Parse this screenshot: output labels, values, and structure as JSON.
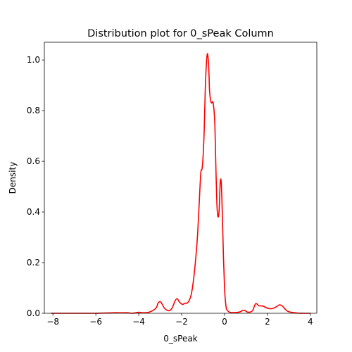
{
  "chart_data": {
    "type": "line",
    "title": "Distribution plot for 0_sPeak Column",
    "xlabel": "0_sPeak",
    "ylabel": "Density",
    "xlim": [
      -8.4,
      4.3
    ],
    "ylim": [
      0,
      1.07
    ],
    "x_ticks": [
      -8,
      -6,
      -4,
      -2,
      0,
      2,
      4
    ],
    "x_tick_labels": [
      "−8",
      "−6",
      "−4",
      "−2",
      "0",
      "2",
      "4"
    ],
    "y_ticks": [
      0.0,
      0.2,
      0.4,
      0.6,
      0.8,
      1.0
    ],
    "y_tick_labels": [
      "0.0",
      "0.2",
      "0.4",
      "0.6",
      "0.8",
      "1.0"
    ],
    "grid": false,
    "series": [
      {
        "color": "#ff0000",
        "x": [
          -8.1,
          -7.0,
          -6.0,
          -5.2,
          -4.8,
          -4.5,
          -4.3,
          -4.0,
          -3.8,
          -3.5,
          -3.2,
          -3.1,
          -3.0,
          -2.9,
          -2.8,
          -2.6,
          -2.45,
          -2.3,
          -2.2,
          -2.15,
          -2.05,
          -1.95,
          -1.85,
          -1.75,
          -1.65,
          -1.55,
          -1.45,
          -1.35,
          -1.25,
          -1.15,
          -1.1,
          -1.05,
          -1.0,
          -0.95,
          -0.9,
          -0.85,
          -0.8,
          -0.75,
          -0.72,
          -0.7,
          -0.65,
          -0.6,
          -0.55,
          -0.5,
          -0.45,
          -0.4,
          -0.35,
          -0.3,
          -0.25,
          -0.2,
          -0.15,
          -0.1,
          -0.05,
          0.0,
          0.05,
          0.1,
          0.2,
          0.3,
          0.5,
          0.7,
          0.9,
          1.1,
          1.3,
          1.45,
          1.6,
          1.8,
          2.0,
          2.2,
          2.4,
          2.55,
          2.7,
          2.9,
          3.1,
          3.4,
          3.7,
          4.0
        ],
        "y": [
          0.0,
          0.0,
          0.0,
          0.002,
          0.002,
          0.002,
          0.0,
          0.004,
          0.002,
          0.005,
          0.02,
          0.04,
          0.046,
          0.035,
          0.02,
          0.01,
          0.02,
          0.05,
          0.058,
          0.05,
          0.04,
          0.035,
          0.04,
          0.04,
          0.05,
          0.075,
          0.13,
          0.21,
          0.32,
          0.49,
          0.56,
          0.57,
          0.62,
          0.72,
          0.88,
          0.98,
          1.025,
          0.99,
          0.93,
          0.88,
          0.84,
          0.83,
          0.835,
          0.81,
          0.74,
          0.56,
          0.42,
          0.38,
          0.41,
          0.52,
          0.51,
          0.38,
          0.22,
          0.1,
          0.04,
          0.015,
          0.006,
          0.003,
          0.003,
          0.005,
          0.012,
          0.004,
          0.01,
          0.038,
          0.03,
          0.028,
          0.02,
          0.018,
          0.025,
          0.033,
          0.028,
          0.01,
          0.004,
          0.001,
          0.0,
          0.0
        ]
      }
    ]
  }
}
